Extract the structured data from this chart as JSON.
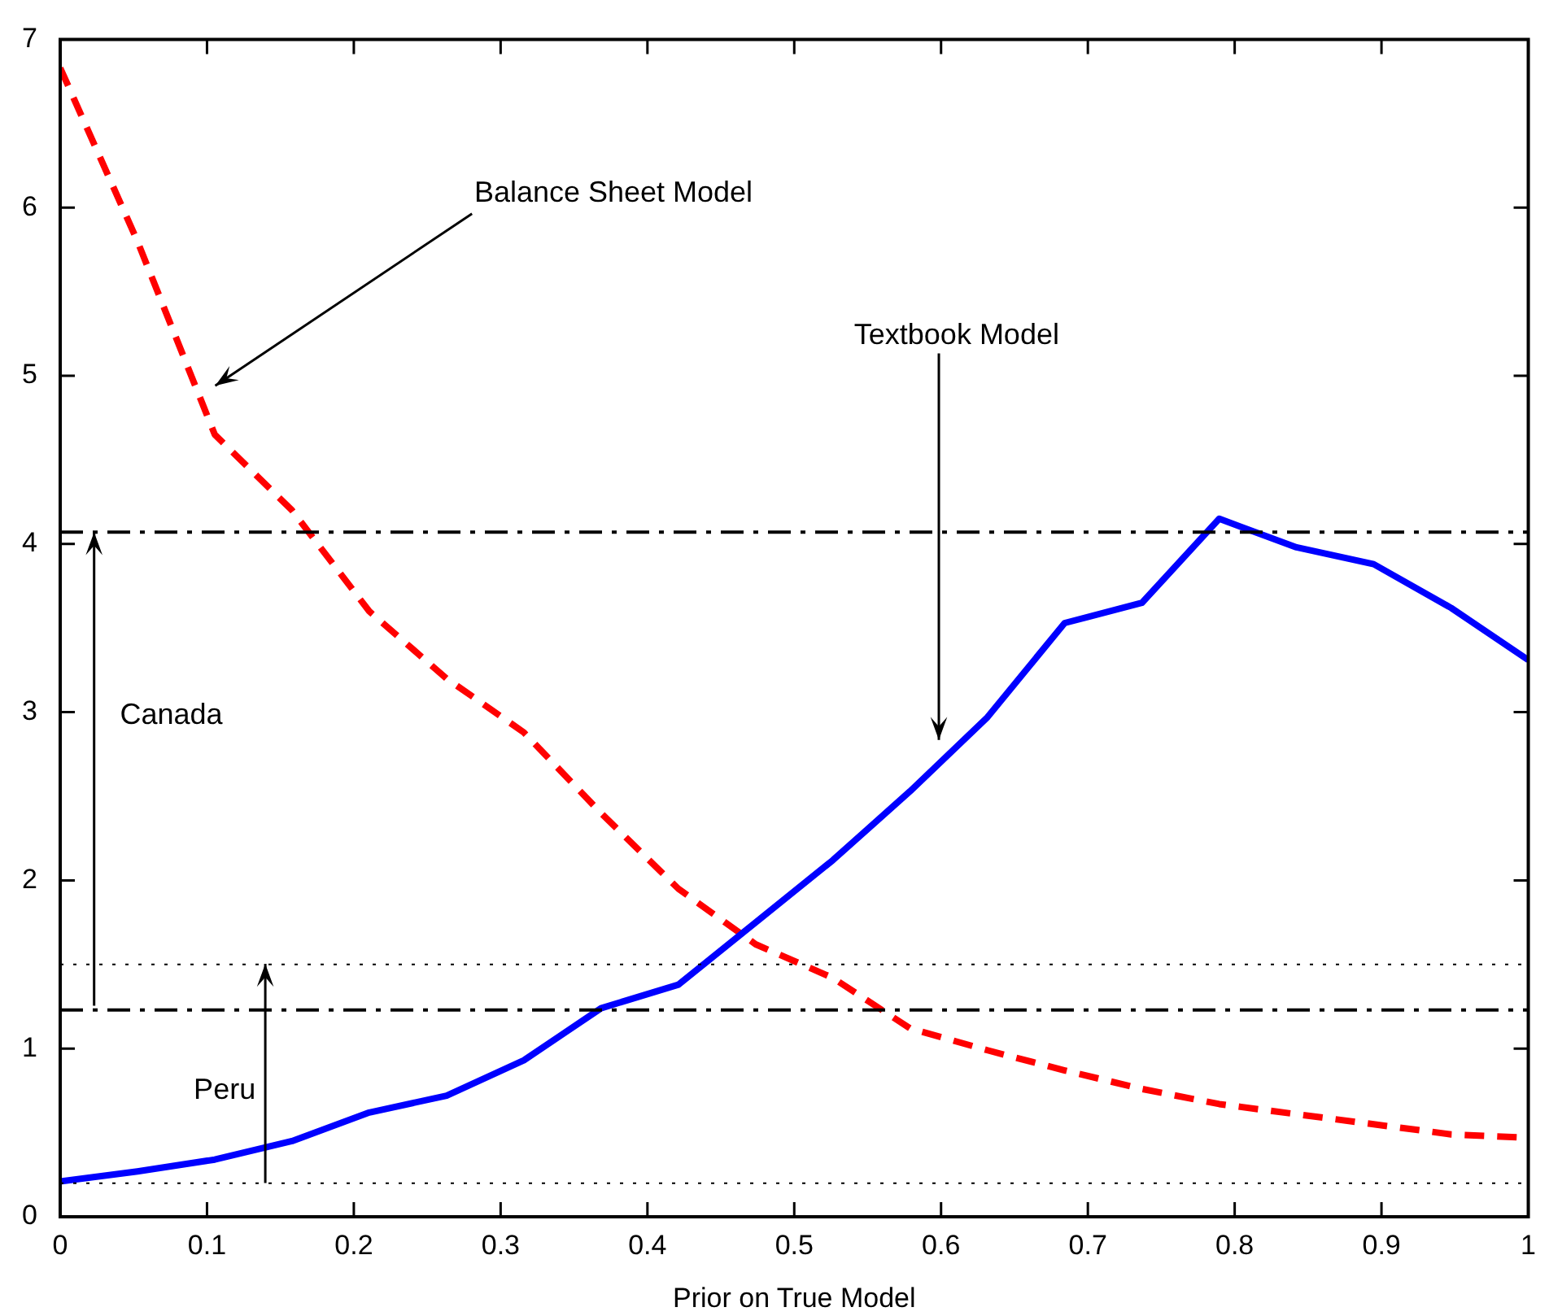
{
  "chart_data": {
    "type": "line",
    "xlabel": "Prior on True Model",
    "x": [
      0,
      0.0526,
      0.1053,
      0.1579,
      0.2105,
      0.2632,
      0.3158,
      0.3684,
      0.4211,
      0.4737,
      0.5263,
      0.5789,
      0.6316,
      0.6842,
      0.7368,
      0.7895,
      0.8421,
      0.8947,
      0.9474,
      1
    ],
    "series": [
      {
        "color": "#0000ff",
        "line_style": "solid",
        "values": [
          0.21,
          0.27,
          0.34,
          0.45,
          0.62,
          0.72,
          0.93,
          1.24,
          1.38,
          1.75,
          2.12,
          2.53,
          2.97,
          3.53,
          3.65,
          4.15,
          3.98,
          3.88,
          3.62,
          3.31
        ]
      },
      {
        "color": "#ff0000",
        "line_style": "dashed",
        "values": [
          6.83,
          5.8,
          4.65,
          4.2,
          3.6,
          3.2,
          2.88,
          2.4,
          1.95,
          1.62,
          1.42,
          1.12,
          0.99,
          0.87,
          0.76,
          0.67,
          0.61,
          0.55,
          0.49,
          0.47
        ]
      }
    ],
    "xlim": [
      0,
      1
    ],
    "xticks": [
      0,
      0.1,
      0.2,
      0.3,
      0.4,
      0.5,
      0.6,
      0.7,
      0.8,
      0.9,
      1
    ],
    "ylim": [
      0,
      7
    ],
    "yticks": [
      0,
      1,
      2,
      3,
      4,
      5,
      6,
      7
    ],
    "grid": false,
    "legend": false,
    "marker": "none",
    "ref_lines": [
      {
        "axis": "y",
        "value": 4.07,
        "line_style": "dashdot",
        "color": "#000000"
      },
      {
        "axis": "y",
        "value": 1.23,
        "line_style": "dashdot",
        "color": "#000000"
      },
      {
        "axis": "y",
        "value": 1.5,
        "line_style": "dotted",
        "color": "#000000"
      },
      {
        "axis": "y",
        "value": 0.2,
        "line_style": "dotted",
        "color": "#000000"
      }
    ],
    "annotations": [
      "Balance Sheet Model",
      "Textbook Model",
      "Canada",
      "Peru"
    ]
  }
}
